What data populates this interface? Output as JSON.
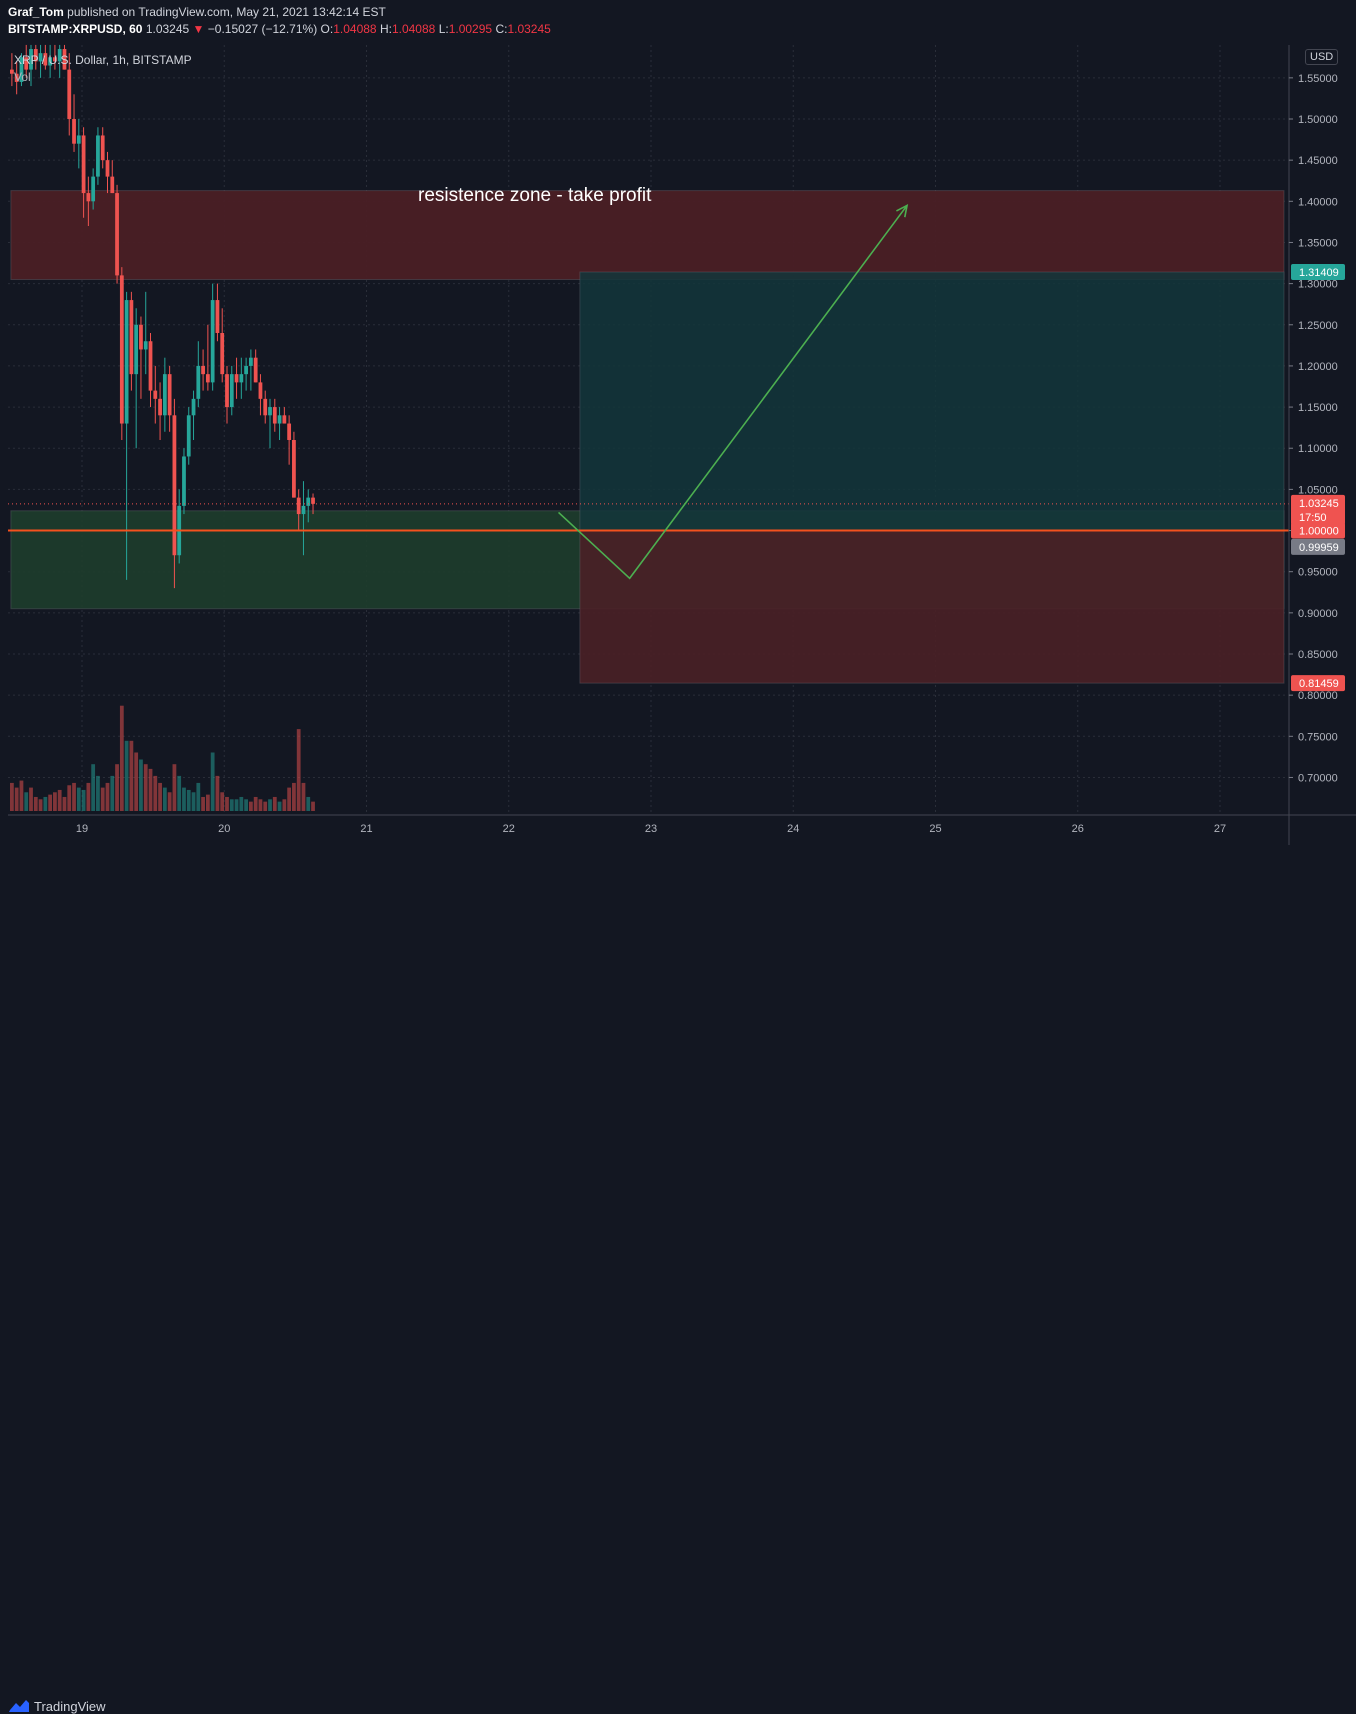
{
  "header": {
    "author": "Graf_Tom",
    "published_text": "published on TradingView.com, May 21, 2021 13:42:14 EST",
    "symbol": "BITSTAMP:XRPUSD, 60",
    "last": "1.03245",
    "arrow": "▼",
    "change": "−0.15027 (−12.71%)",
    "o_label": "O:",
    "o_value": "1.04088",
    "h_label": "H:",
    "h_value": "1.04088",
    "l_label": "L:",
    "l_value": "1.00295",
    "c_label": "C:",
    "c_value": "1.03245"
  },
  "legend": {
    "title": "XRP / U.S. Dollar, 1h, BITSTAMP",
    "vol_label": "Vol"
  },
  "currency_label": "USD",
  "annotation": "resistence zone - take profit",
  "footer": {
    "brand": "TradingView"
  },
  "colors": {
    "up": "#26a69a",
    "down": "#ef5350",
    "background": "#131722",
    "resistance_zone": "#4a1f25",
    "support_zone": "#1e3d2c",
    "target_zone": "#13363b",
    "stop_zone": "#4a2026",
    "arrow": "#4caf50",
    "horizontal_line": "#f4511e"
  },
  "chart_data": {
    "type": "candlestick",
    "title": "XRP / U.S. Dollar, 1h, BITSTAMP",
    "ylim": [
      0.65,
      1.59
    ],
    "y_ticks": [
      "1.55000",
      "1.50000",
      "1.45000",
      "1.40000",
      "1.35000",
      "1.30000",
      "1.25000",
      "1.20000",
      "1.15000",
      "1.10000",
      "1.05000",
      "1.00000",
      "0.95000",
      "0.90000",
      "0.85000",
      "0.80000",
      "0.75000",
      "0.70000"
    ],
    "x_ticks": [
      "19",
      "20",
      "21",
      "22",
      "23",
      "24",
      "25",
      "26",
      "27"
    ],
    "price_labels": [
      {
        "value": 1.31409,
        "text": "1.31409",
        "color": "#26a69a"
      },
      {
        "value": 1.03245,
        "text": "1.03245",
        "sub": "17:50",
        "color": "#ef5350"
      },
      {
        "value": 1.0,
        "text": "1.00000",
        "color": "#ef5350"
      },
      {
        "value": 0.99959,
        "text": "0.99959",
        "color": "#787b86"
      },
      {
        "value": 0.81459,
        "text": "0.81459",
        "color": "#ef5350"
      }
    ],
    "zones": [
      {
        "name": "resistance",
        "from_day": 18.5,
        "to_day": 27.45,
        "y_low": 1.305,
        "y_high": 1.413
      },
      {
        "name": "support",
        "from_day": 18.5,
        "to_day": 27.45,
        "y_low": 0.905,
        "y_high": 1.024
      },
      {
        "name": "target",
        "from_day": 22.5,
        "to_day": 27.45,
        "y_low": 1.0,
        "y_high": 1.31409
      },
      {
        "name": "stop",
        "from_day": 22.5,
        "to_day": 27.45,
        "y_low": 0.81459,
        "y_high": 1.0
      }
    ],
    "horizontal_line": 1.0,
    "arrow_path": [
      [
        22.35,
        1.022
      ],
      [
        22.85,
        0.942
      ],
      [
        24.8,
        1.395
      ]
    ],
    "candles": [
      [
        1.56,
        1.58,
        1.54,
        1.555
      ],
      [
        1.555,
        1.57,
        1.53,
        1.545
      ],
      [
        1.545,
        1.58,
        1.54,
        1.575
      ],
      [
        1.575,
        1.59,
        1.55,
        1.56
      ],
      [
        1.56,
        1.59,
        1.54,
        1.585
      ],
      [
        1.585,
        1.59,
        1.56,
        1.57
      ],
      [
        1.57,
        1.59,
        1.55,
        1.58
      ],
      [
        1.58,
        1.59,
        1.56,
        1.565
      ],
      [
        1.565,
        1.59,
        1.55,
        1.575
      ],
      [
        1.575,
        1.59,
        1.56,
        1.57
      ],
      [
        1.57,
        1.59,
        1.55,
        1.585
      ],
      [
        1.585,
        1.59,
        1.56,
        1.56
      ],
      [
        1.56,
        1.58,
        1.48,
        1.5
      ],
      [
        1.5,
        1.53,
        1.46,
        1.47
      ],
      [
        1.47,
        1.5,
        1.44,
        1.48
      ],
      [
        1.48,
        1.49,
        1.38,
        1.41
      ],
      [
        1.41,
        1.43,
        1.37,
        1.4
      ],
      [
        1.4,
        1.44,
        1.39,
        1.43
      ],
      [
        1.43,
        1.49,
        1.42,
        1.48
      ],
      [
        1.48,
        1.49,
        1.44,
        1.45
      ],
      [
        1.45,
        1.46,
        1.41,
        1.43
      ],
      [
        1.43,
        1.45,
        1.41,
        1.41
      ],
      [
        1.41,
        1.42,
        1.3,
        1.31
      ],
      [
        1.31,
        1.32,
        1.11,
        1.13
      ],
      [
        1.13,
        1.29,
        0.94,
        1.28
      ],
      [
        1.28,
        1.29,
        1.17,
        1.19
      ],
      [
        1.19,
        1.27,
        1.1,
        1.25
      ],
      [
        1.25,
        1.26,
        1.16,
        1.22
      ],
      [
        1.22,
        1.29,
        1.19,
        1.23
      ],
      [
        1.23,
        1.24,
        1.15,
        1.17
      ],
      [
        1.17,
        1.2,
        1.13,
        1.16
      ],
      [
        1.16,
        1.18,
        1.11,
        1.14
      ],
      [
        1.14,
        1.21,
        1.12,
        1.19
      ],
      [
        1.19,
        1.2,
        1.12,
        1.14
      ],
      [
        1.14,
        1.16,
        0.93,
        0.97
      ],
      [
        0.97,
        1.05,
        0.96,
        1.03
      ],
      [
        1.03,
        1.1,
        1.02,
        1.09
      ],
      [
        1.09,
        1.15,
        1.08,
        1.14
      ],
      [
        1.14,
        1.17,
        1.11,
        1.16
      ],
      [
        1.16,
        1.23,
        1.15,
        1.2
      ],
      [
        1.2,
        1.22,
        1.17,
        1.19
      ],
      [
        1.19,
        1.25,
        1.17,
        1.18
      ],
      [
        1.18,
        1.3,
        1.17,
        1.28
      ],
      [
        1.28,
        1.3,
        1.23,
        1.24
      ],
      [
        1.24,
        1.27,
        1.18,
        1.19
      ],
      [
        1.19,
        1.2,
        1.13,
        1.15
      ],
      [
        1.15,
        1.2,
        1.14,
        1.19
      ],
      [
        1.19,
        1.21,
        1.16,
        1.18
      ],
      [
        1.18,
        1.21,
        1.16,
        1.19
      ],
      [
        1.19,
        1.21,
        1.17,
        1.2
      ],
      [
        1.2,
        1.22,
        1.17,
        1.21
      ],
      [
        1.21,
        1.22,
        1.18,
        1.18
      ],
      [
        1.18,
        1.19,
        1.14,
        1.16
      ],
      [
        1.16,
        1.17,
        1.13,
        1.14
      ],
      [
        1.14,
        1.16,
        1.1,
        1.15
      ],
      [
        1.15,
        1.16,
        1.12,
        1.13
      ],
      [
        1.13,
        1.15,
        1.11,
        1.14
      ],
      [
        1.14,
        1.15,
        1.13,
        1.13
      ],
      [
        1.13,
        1.14,
        1.08,
        1.11
      ],
      [
        1.11,
        1.12,
        1.04,
        1.04
      ],
      [
        1.04,
        1.05,
        1.0,
        1.02
      ],
      [
        1.02,
        1.06,
        0.97,
        1.03
      ],
      [
        1.03,
        1.05,
        1.01,
        1.04
      ],
      [
        1.04,
        1.045,
        1.02,
        1.03245
      ]
    ],
    "volumes": [
      [
        0.12,
        "down"
      ],
      [
        0.1,
        "down"
      ],
      [
        0.13,
        "down"
      ],
      [
        0.08,
        "up"
      ],
      [
        0.1,
        "down"
      ],
      [
        0.06,
        "down"
      ],
      [
        0.05,
        "down"
      ],
      [
        0.06,
        "up"
      ],
      [
        0.07,
        "down"
      ],
      [
        0.08,
        "down"
      ],
      [
        0.09,
        "down"
      ],
      [
        0.06,
        "down"
      ],
      [
        0.11,
        "down"
      ],
      [
        0.12,
        "down"
      ],
      [
        0.1,
        "up"
      ],
      [
        0.09,
        "up"
      ],
      [
        0.12,
        "down"
      ],
      [
        0.2,
        "up"
      ],
      [
        0.15,
        "up"
      ],
      [
        0.1,
        "down"
      ],
      [
        0.12,
        "down"
      ],
      [
        0.15,
        "up"
      ],
      [
        0.2,
        "down"
      ],
      [
        0.45,
        "down"
      ],
      [
        0.3,
        "up"
      ],
      [
        0.3,
        "down"
      ],
      [
        0.25,
        "down"
      ],
      [
        0.22,
        "up"
      ],
      [
        0.2,
        "down"
      ],
      [
        0.18,
        "down"
      ],
      [
        0.15,
        "down"
      ],
      [
        0.12,
        "down"
      ],
      [
        0.1,
        "up"
      ],
      [
        0.08,
        "down"
      ],
      [
        0.2,
        "down"
      ],
      [
        0.15,
        "up"
      ],
      [
        0.1,
        "up"
      ],
      [
        0.09,
        "up"
      ],
      [
        0.08,
        "up"
      ],
      [
        0.12,
        "up"
      ],
      [
        0.06,
        "down"
      ],
      [
        0.07,
        "down"
      ],
      [
        0.25,
        "up"
      ],
      [
        0.15,
        "down"
      ],
      [
        0.08,
        "down"
      ],
      [
        0.06,
        "down"
      ],
      [
        0.05,
        "up"
      ],
      [
        0.05,
        "up"
      ],
      [
        0.06,
        "up"
      ],
      [
        0.05,
        "up"
      ],
      [
        0.04,
        "down"
      ],
      [
        0.06,
        "down"
      ],
      [
        0.05,
        "down"
      ],
      [
        0.04,
        "down"
      ],
      [
        0.05,
        "up"
      ],
      [
        0.06,
        "down"
      ],
      [
        0.04,
        "up"
      ],
      [
        0.05,
        "down"
      ],
      [
        0.1,
        "down"
      ],
      [
        0.12,
        "down"
      ],
      [
        0.35,
        "down"
      ],
      [
        0.12,
        "down"
      ],
      [
        0.06,
        "up"
      ],
      [
        0.04,
        "down"
      ]
    ]
  }
}
